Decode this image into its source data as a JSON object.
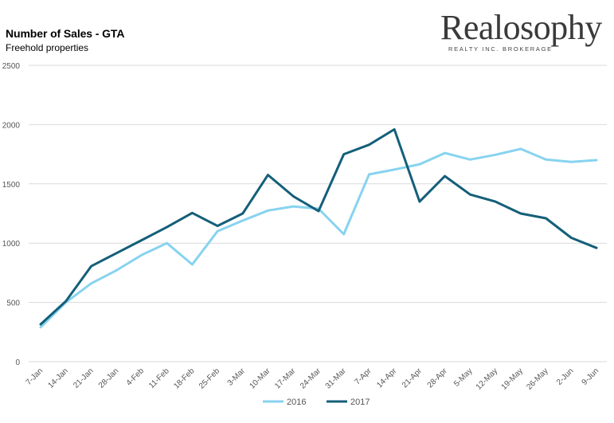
{
  "header": {
    "title": "Number of Sales - GTA",
    "subtitle": "Freehold properties"
  },
  "logo": {
    "name": "Realosophy",
    "tagline": "REALTY INC. BROKERAGE"
  },
  "colors": {
    "series_2016": "#87d3ef",
    "series_2017": "#145f79",
    "grid": "#d9d9d9",
    "axis_text": "#555555"
  },
  "chart_data": {
    "type": "line",
    "title": "Number of Sales - GTA",
    "subtitle": "Freehold properties",
    "xlabel": "",
    "ylabel": "",
    "ylim": [
      0,
      2500
    ],
    "yticks": [
      0,
      500,
      1000,
      1500,
      2000,
      2500
    ],
    "grid": true,
    "legend_position": "bottom",
    "categories": [
      "7-Jan",
      "14-Jan",
      "21-Jan",
      "28-Jan",
      "4-Feb",
      "11-Feb",
      "18-Feb",
      "25-Feb",
      "3-Mar",
      "10-Mar",
      "17-Mar",
      "24-Mar",
      "31-Mar",
      "7-Apr",
      "14-Apr",
      "21-Apr",
      "28-Apr",
      "5-May",
      "12-May",
      "19-May",
      "26-May",
      "2-Jun",
      "9-Jun"
    ],
    "series": [
      {
        "name": "2016",
        "color": "#87d3ef",
        "values": [
          290,
          500,
          660,
          770,
          900,
          1000,
          820,
          1100,
          1190,
          1275,
          1310,
          1290,
          1075,
          1580,
          1620,
          1665,
          1760,
          1705,
          1745,
          1795,
          1705,
          1685,
          1700
        ]
      },
      {
        "name": "2017",
        "color": "#145f79",
        "values": [
          315,
          510,
          805,
          915,
          1025,
          1135,
          1255,
          1145,
          1250,
          1575,
          1395,
          1270,
          1750,
          1830,
          1960,
          1350,
          1565,
          1410,
          1350,
          1250,
          1210,
          1045,
          960
        ]
      }
    ]
  }
}
